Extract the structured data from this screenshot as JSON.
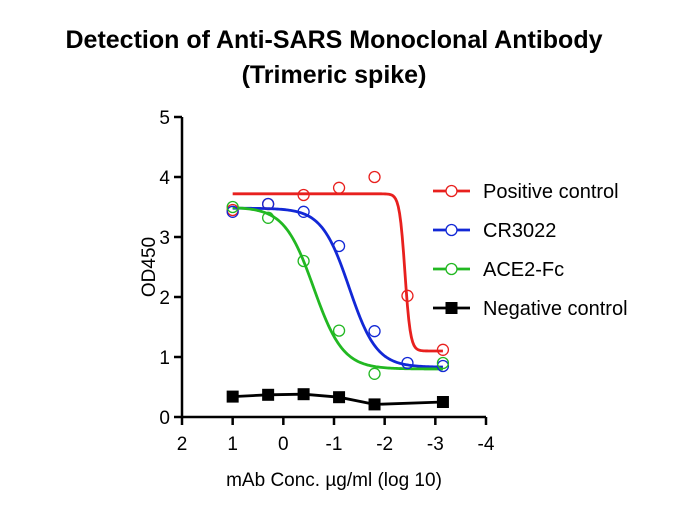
{
  "chart_data": {
    "type": "scatter",
    "title": "Detection of Anti-SARS Monoclonal Antibody",
    "subtitle": "(Trimeric spike)",
    "xlabel": "mAb Conc. µg/ml (log 10)",
    "ylabel": "OD450",
    "xlim": [
      2,
      -4
    ],
    "ylim": [
      0,
      5
    ],
    "x_reversed": true,
    "x_ticks": [
      2,
      1,
      0,
      -1,
      -2,
      -3,
      -4
    ],
    "x_tick_labels": [
      "2",
      "1",
      "0",
      "-1",
      "-2",
      "-3",
      "-4"
    ],
    "y_ticks": [
      0,
      1,
      2,
      3,
      4,
      5
    ],
    "y_tick_labels": [
      "0",
      "1",
      "2",
      "3",
      "4",
      "5"
    ],
    "grid": false,
    "legend_position": "right",
    "series": [
      {
        "name": "Positive control",
        "color": "#e8201e",
        "marker": "open-circle",
        "x": [
          1.0,
          0.3,
          -0.4,
          -1.1,
          -1.8,
          -2.45,
          -3.15
        ],
        "y": [
          3.45,
          3.55,
          3.7,
          3.82,
          4.0,
          2.02,
          1.12
        ],
        "fit": {
          "top": 3.72,
          "bottom": 1.1,
          "log_ic50": -2.4,
          "hill": 8
        }
      },
      {
        "name": "CR3022",
        "color": "#1228d6",
        "marker": "open-circle",
        "x": [
          1.0,
          0.3,
          -0.4,
          -1.1,
          -1.8,
          -2.45,
          -3.15
        ],
        "y": [
          3.42,
          3.55,
          3.42,
          2.85,
          1.43,
          0.9,
          0.85
        ],
        "fit": {
          "top": 3.48,
          "bottom": 0.83,
          "log_ic50": -1.3,
          "hill": 1.6
        }
      },
      {
        "name": "ACE2-Fc",
        "color": "#22b822",
        "marker": "open-circle",
        "x": [
          1.0,
          0.3,
          -0.4,
          -1.1,
          -1.8,
          -3.15
        ],
        "y": [
          3.5,
          3.32,
          2.6,
          1.44,
          0.72,
          0.9
        ],
        "fit": {
          "top": 3.5,
          "bottom": 0.8,
          "log_ic50": -0.6,
          "hill": 1.5
        }
      },
      {
        "name": "Negative control",
        "color": "#000000",
        "marker": "filled-square",
        "x": [
          1.0,
          0.3,
          -0.4,
          -1.1,
          -1.8,
          -3.15
        ],
        "y": [
          0.34,
          0.37,
          0.38,
          0.33,
          0.21,
          0.25
        ],
        "connect": true
      }
    ]
  }
}
